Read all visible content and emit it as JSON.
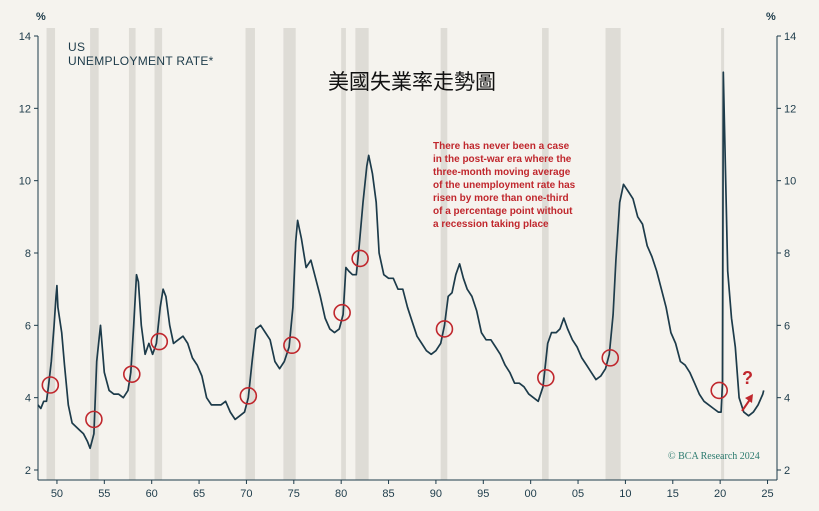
{
  "chart_data": {
    "type": "line",
    "title": "US",
    "subtitle": "UNEMPLOYMENT RATE*",
    "overlay_title": "美國失業率走勢圖",
    "y_unit_left": "%",
    "y_unit_right": "%",
    "ylim": [
      2,
      14
    ],
    "y_ticks": [
      2,
      4,
      6,
      8,
      10,
      12,
      14
    ],
    "xlim": [
      1948,
      2026
    ],
    "x_ticks": [
      {
        "year": 1950,
        "label": "50"
      },
      {
        "year": 1955,
        "label": "55"
      },
      {
        "year": 1960,
        "label": "60"
      },
      {
        "year": 1965,
        "label": "65"
      },
      {
        "year": 1970,
        "label": "70"
      },
      {
        "year": 1975,
        "label": "75"
      },
      {
        "year": 1980,
        "label": "80"
      },
      {
        "year": 1985,
        "label": "85"
      },
      {
        "year": 1990,
        "label": "90"
      },
      {
        "year": 1995,
        "label": "95"
      },
      {
        "year": 2000,
        "label": "00"
      },
      {
        "year": 2005,
        "label": "05"
      },
      {
        "year": 2010,
        "label": "10"
      },
      {
        "year": 2015,
        "label": "15"
      },
      {
        "year": 2020,
        "label": "20"
      },
      {
        "year": 2025,
        "label": "25"
      }
    ],
    "recessions": [
      [
        1948.9,
        1949.8
      ],
      [
        1953.5,
        1954.4
      ],
      [
        1957.6,
        1958.3
      ],
      [
        1960.3,
        1961.1
      ],
      [
        1969.9,
        1970.9
      ],
      [
        1973.9,
        1975.2
      ],
      [
        1980.0,
        1980.5
      ],
      [
        1981.5,
        1982.9
      ],
      [
        1990.5,
        1991.2
      ],
      [
        2001.2,
        2001.9
      ],
      [
        2007.9,
        2009.5
      ],
      [
        2020.1,
        2020.4
      ]
    ],
    "series": [
      {
        "values": [
          [
            1948.0,
            3.8
          ],
          [
            1948.3,
            3.7
          ],
          [
            1948.6,
            3.9
          ],
          [
            1948.9,
            3.9
          ],
          [
            1949.1,
            4.3
          ],
          [
            1949.4,
            5.0
          ],
          [
            1949.7,
            6.0
          ],
          [
            1949.9,
            6.8
          ],
          [
            1950.0,
            7.1
          ],
          [
            1950.1,
            6.5
          ],
          [
            1950.5,
            5.8
          ],
          [
            1950.8,
            4.9
          ],
          [
            1951.2,
            3.8
          ],
          [
            1951.6,
            3.3
          ],
          [
            1952.0,
            3.2
          ],
          [
            1952.4,
            3.1
          ],
          [
            1952.8,
            3.0
          ],
          [
            1953.2,
            2.8
          ],
          [
            1953.5,
            2.6
          ],
          [
            1953.9,
            3.0
          ],
          [
            1954.2,
            5.0
          ],
          [
            1954.6,
            6.0
          ],
          [
            1955.0,
            4.7
          ],
          [
            1955.5,
            4.2
          ],
          [
            1956.0,
            4.1
          ],
          [
            1956.5,
            4.1
          ],
          [
            1957.0,
            4.0
          ],
          [
            1957.5,
            4.2
          ],
          [
            1957.8,
            4.7
          ],
          [
            1958.1,
            6.0
          ],
          [
            1958.4,
            7.4
          ],
          [
            1958.6,
            7.2
          ],
          [
            1958.9,
            6.0
          ],
          [
            1959.3,
            5.2
          ],
          [
            1959.7,
            5.5
          ],
          [
            1960.1,
            5.2
          ],
          [
            1960.5,
            5.5
          ],
          [
            1960.9,
            6.5
          ],
          [
            1961.2,
            7.0
          ],
          [
            1961.5,
            6.8
          ],
          [
            1961.9,
            6.0
          ],
          [
            1962.3,
            5.5
          ],
          [
            1962.8,
            5.6
          ],
          [
            1963.3,
            5.7
          ],
          [
            1963.8,
            5.5
          ],
          [
            1964.3,
            5.1
          ],
          [
            1964.8,
            4.9
          ],
          [
            1965.3,
            4.6
          ],
          [
            1965.8,
            4.0
          ],
          [
            1966.3,
            3.8
          ],
          [
            1966.8,
            3.8
          ],
          [
            1967.3,
            3.8
          ],
          [
            1967.8,
            3.9
          ],
          [
            1968.3,
            3.6
          ],
          [
            1968.8,
            3.4
          ],
          [
            1969.3,
            3.5
          ],
          [
            1969.8,
            3.6
          ],
          [
            1970.2,
            4.0
          ],
          [
            1970.6,
            5.0
          ],
          [
            1971.0,
            5.9
          ],
          [
            1971.5,
            6.0
          ],
          [
            1972.0,
            5.8
          ],
          [
            1972.5,
            5.6
          ],
          [
            1973.0,
            5.0
          ],
          [
            1973.5,
            4.8
          ],
          [
            1974.0,
            5.0
          ],
          [
            1974.5,
            5.4
          ],
          [
            1974.9,
            6.5
          ],
          [
            1975.2,
            8.3
          ],
          [
            1975.4,
            8.9
          ],
          [
            1975.8,
            8.4
          ],
          [
            1976.3,
            7.6
          ],
          [
            1976.8,
            7.8
          ],
          [
            1977.3,
            7.3
          ],
          [
            1977.8,
            6.8
          ],
          [
            1978.3,
            6.2
          ],
          [
            1978.8,
            5.9
          ],
          [
            1979.3,
            5.8
          ],
          [
            1979.8,
            5.9
          ],
          [
            1980.2,
            6.3
          ],
          [
            1980.5,
            7.6
          ],
          [
            1980.8,
            7.5
          ],
          [
            1981.2,
            7.4
          ],
          [
            1981.6,
            7.4
          ],
          [
            1981.9,
            8.2
          ],
          [
            1982.3,
            9.4
          ],
          [
            1982.7,
            10.4
          ],
          [
            1982.9,
            10.7
          ],
          [
            1983.3,
            10.2
          ],
          [
            1983.7,
            9.4
          ],
          [
            1984.0,
            8.0
          ],
          [
            1984.5,
            7.4
          ],
          [
            1985.0,
            7.3
          ],
          [
            1985.5,
            7.3
          ],
          [
            1986.0,
            7.0
          ],
          [
            1986.5,
            7.0
          ],
          [
            1987.0,
            6.5
          ],
          [
            1987.5,
            6.1
          ],
          [
            1988.0,
            5.7
          ],
          [
            1988.5,
            5.5
          ],
          [
            1989.0,
            5.3
          ],
          [
            1989.5,
            5.2
          ],
          [
            1990.0,
            5.3
          ],
          [
            1990.5,
            5.5
          ],
          [
            1990.9,
            6.0
          ],
          [
            1991.3,
            6.8
          ],
          [
            1991.7,
            6.9
          ],
          [
            1992.1,
            7.4
          ],
          [
            1992.5,
            7.7
          ],
          [
            1992.9,
            7.3
          ],
          [
            1993.3,
            7.0
          ],
          [
            1993.8,
            6.8
          ],
          [
            1994.3,
            6.4
          ],
          [
            1994.8,
            5.8
          ],
          [
            1995.3,
            5.6
          ],
          [
            1995.8,
            5.6
          ],
          [
            1996.3,
            5.4
          ],
          [
            1996.8,
            5.2
          ],
          [
            1997.3,
            4.9
          ],
          [
            1997.8,
            4.7
          ],
          [
            1998.3,
            4.4
          ],
          [
            1998.8,
            4.4
          ],
          [
            1999.3,
            4.3
          ],
          [
            1999.8,
            4.1
          ],
          [
            2000.3,
            4.0
          ],
          [
            2000.8,
            3.9
          ],
          [
            2001.3,
            4.3
          ],
          [
            2001.8,
            5.5
          ],
          [
            2002.2,
            5.8
          ],
          [
            2002.7,
            5.8
          ],
          [
            2003.1,
            5.9
          ],
          [
            2003.5,
            6.2
          ],
          [
            2003.9,
            5.9
          ],
          [
            2004.4,
            5.6
          ],
          [
            2004.9,
            5.4
          ],
          [
            2005.4,
            5.1
          ],
          [
            2005.9,
            4.9
          ],
          [
            2006.4,
            4.7
          ],
          [
            2006.9,
            4.5
          ],
          [
            2007.4,
            4.6
          ],
          [
            2007.9,
            4.8
          ],
          [
            2008.3,
            5.2
          ],
          [
            2008.7,
            6.3
          ],
          [
            2009.0,
            7.8
          ],
          [
            2009.4,
            9.4
          ],
          [
            2009.8,
            9.9
          ],
          [
            2010.3,
            9.7
          ],
          [
            2010.8,
            9.5
          ],
          [
            2011.3,
            9.0
          ],
          [
            2011.8,
            8.8
          ],
          [
            2012.3,
            8.2
          ],
          [
            2012.8,
            7.9
          ],
          [
            2013.3,
            7.5
          ],
          [
            2013.8,
            7.0
          ],
          [
            2014.3,
            6.5
          ],
          [
            2014.8,
            5.8
          ],
          [
            2015.3,
            5.5
          ],
          [
            2015.8,
            5.0
          ],
          [
            2016.3,
            4.9
          ],
          [
            2016.8,
            4.7
          ],
          [
            2017.3,
            4.4
          ],
          [
            2017.8,
            4.1
          ],
          [
            2018.3,
            3.9
          ],
          [
            2018.8,
            3.8
          ],
          [
            2019.3,
            3.7
          ],
          [
            2019.8,
            3.6
          ],
          [
            2020.1,
            3.6
          ],
          [
            2020.25,
            4.4
          ],
          [
            2020.33,
            13.0
          ],
          [
            2020.5,
            11.0
          ],
          [
            2020.8,
            7.5
          ],
          [
            2021.2,
            6.2
          ],
          [
            2021.6,
            5.4
          ],
          [
            2022.0,
            4.0
          ],
          [
            2022.5,
            3.6
          ],
          [
            2023.0,
            3.5
          ],
          [
            2023.5,
            3.6
          ],
          [
            2024.0,
            3.8
          ],
          [
            2024.5,
            4.1
          ],
          [
            2024.6,
            4.2
          ]
        ]
      }
    ],
    "highlight_points": [
      [
        1949.3,
        4.35
      ],
      [
        1953.9,
        3.4
      ],
      [
        1957.9,
        4.65
      ],
      [
        1960.8,
        5.55
      ],
      [
        1970.2,
        4.05
      ],
      [
        1974.8,
        5.45
      ],
      [
        1980.1,
        6.35
      ],
      [
        1982.0,
        7.85
      ],
      [
        1990.9,
        5.9
      ],
      [
        2001.6,
        4.55
      ],
      [
        2008.4,
        5.1
      ],
      [
        2019.9,
        4.2
      ]
    ],
    "annotation_lines": [
      "There has never been a case",
      "in the post-war era where the",
      "three-month moving average",
      "of the unemployment rate has",
      "risen by more than one-third",
      "of a percentage point without",
      "a recession taking place"
    ],
    "question_mark": "?",
    "credit": "© BCA Research 2024",
    "colors": {
      "background": "#f5f3ee",
      "line": "#1d3b4a",
      "recession_band": "#dedcd6",
      "highlight": "#c0272d",
      "credit": "#2b7a6e"
    }
  }
}
